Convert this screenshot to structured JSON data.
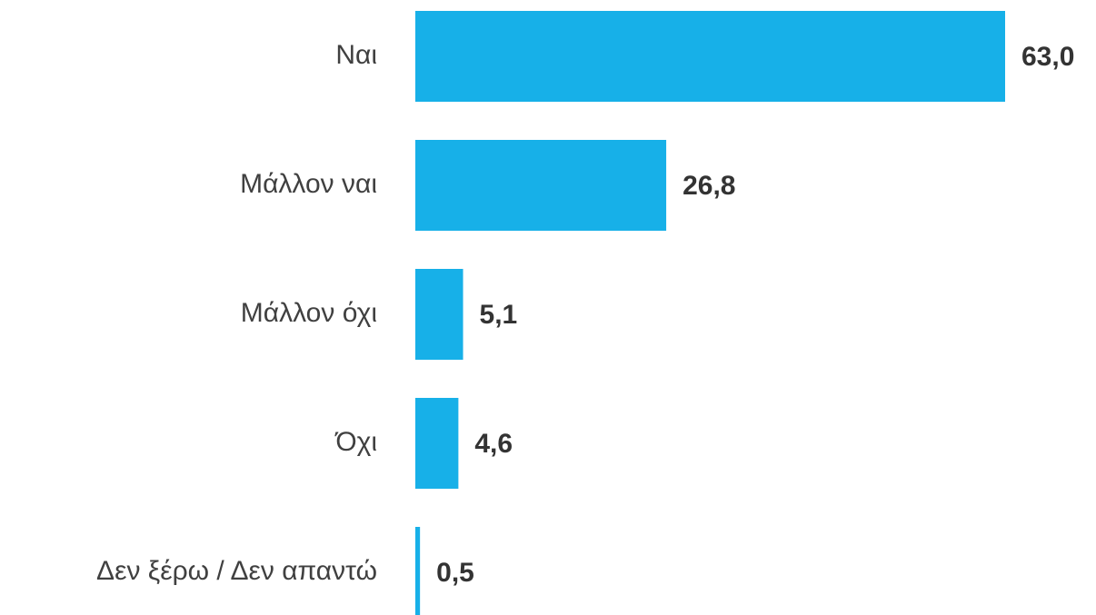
{
  "chart_data": {
    "type": "hbar",
    "categories": [
      "Ναι",
      "Μάλλον ναι",
      "Μάλλον όχι",
      "Όχι",
      "Δεν ξέρω / Δεν απαντώ"
    ],
    "values": [
      63.0,
      26.8,
      5.1,
      4.6,
      0.5
    ],
    "value_labels": [
      "63,0",
      "26,8",
      "5,1",
      "4,6",
      "0,5"
    ],
    "color": "#17b0e8"
  }
}
